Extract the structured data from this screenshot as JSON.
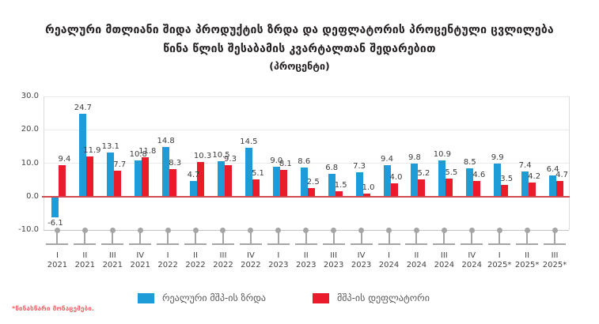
{
  "title": {
    "line1": "რეალური მთლიანი შიდა პროდუქტის ზრდა და დეფლატორის პროცენტული ცვლილება",
    "line2": "წინა წლის შესაბამის კვარტალთან შედარებით",
    "line3": "(პროცენტი)"
  },
  "footnote": "*წინასწარი მონაცემები.",
  "colors": {
    "real_gdp_bar": "#1E9CD7",
    "deflator_bar": "#EA1C2C",
    "zero_line": "#D04A50",
    "gridline": "#EAEAEA",
    "baseline_minus10": "#C2C2C2",
    "axis_line": "#DCDCDC",
    "lollipop": "#A5A5A5",
    "value_label": "#3C3C3C",
    "tick_label": "#444444",
    "title_text": "#231F20",
    "legend_text": "#57585A",
    "footnote_text": "#EE6265"
  },
  "chart_data": {
    "type": "bar",
    "title": "რეალური მთლიანი შიდა პროდუქტის ზრდა და დეფლატორის პროცენტული ცვლილება წინა წლის შესაბამის კვარტალთან შედარებით (პროცენტი)",
    "categories": [
      "I 2021",
      "II 2021",
      "III 2021",
      "IV 2021",
      "I 2022",
      "II 2022",
      "III 2022",
      "IV 2022",
      "I 2023",
      "II 2023",
      "III 2023",
      "IV 2023",
      "I 2024",
      "II 2024",
      "III 2024",
      "IV 2024",
      "I 2025*",
      "II 2025*",
      "III 2025*"
    ],
    "category_quarters": [
      "I",
      "II",
      "III",
      "IV",
      "I",
      "II",
      "III",
      "IV",
      "I",
      "II",
      "III",
      "IV",
      "I",
      "II",
      "III",
      "IV",
      "I",
      "II",
      "III"
    ],
    "category_years": [
      "2021",
      "2021",
      "2021",
      "2021",
      "2022",
      "2022",
      "2022",
      "2022",
      "2023",
      "2023",
      "2023",
      "2023",
      "2024",
      "2024",
      "2024",
      "2024",
      "2025*",
      "2025*",
      "2025*"
    ],
    "series": [
      {
        "name": "რეალური მშპ-ის ზრდა",
        "color": "#1E9CD7",
        "values": [
          -6.1,
          24.7,
          13.1,
          10.8,
          14.8,
          4.7,
          10.5,
          14.5,
          9.0,
          8.6,
          6.8,
          7.3,
          9.4,
          9.8,
          10.9,
          8.5,
          9.9,
          7.4,
          6.4
        ]
      },
      {
        "name": "მშპ-ის დეფლატორი",
        "color": "#EA1C2C",
        "values": [
          9.4,
          11.9,
          7.7,
          11.8,
          8.3,
          10.3,
          9.3,
          5.1,
          8.1,
          2.5,
          1.5,
          1.0,
          4.0,
          5.2,
          5.5,
          4.6,
          3.5,
          4.2,
          4.7
        ]
      }
    ],
    "ylim": [
      -10,
      30
    ],
    "yticks": [
      {
        "label": "30.0",
        "value": 30
      },
      {
        "label": "20.0",
        "value": 20
      },
      {
        "label": "10.0",
        "value": 10
      },
      {
        "label": "0.0",
        "value": 0
      },
      {
        "label": "-10.0",
        "value": -10
      }
    ],
    "grid": true,
    "legend_position": "bottom"
  }
}
